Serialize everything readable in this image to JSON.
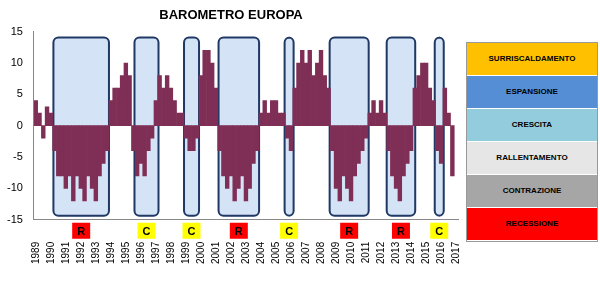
{
  "chart_data": {
    "type": "bar",
    "title": "BAROMETRO EUROPA",
    "categories": [
      "1989",
      null,
      null,
      null,
      "1990",
      null,
      null,
      null,
      "1991",
      null,
      null,
      null,
      "1992",
      null,
      null,
      null,
      "1993",
      null,
      null,
      null,
      "1994",
      null,
      null,
      null,
      "1995",
      null,
      null,
      null,
      "1996",
      null,
      null,
      null,
      "1997",
      null,
      null,
      null,
      "1998",
      null,
      null,
      null,
      "1999",
      null,
      null,
      null,
      "2000",
      null,
      null,
      null,
      "2001",
      null,
      null,
      null,
      "2002",
      null,
      null,
      null,
      "2003",
      null,
      null,
      null,
      "2004",
      null,
      null,
      null,
      "2005",
      null,
      null,
      null,
      "2006",
      null,
      null,
      null,
      "2007",
      null,
      null,
      null,
      "2008",
      null,
      null,
      null,
      "2009",
      null,
      null,
      null,
      "2010",
      null,
      null,
      null,
      "2011",
      null,
      null,
      null,
      "2012",
      null,
      null,
      null,
      "2013",
      null,
      null,
      null,
      "2014",
      null,
      null,
      null,
      "2015",
      null,
      null,
      null,
      "2016",
      null,
      null,
      null,
      "2017"
    ],
    "values": [
      4,
      2,
      -2,
      3,
      2,
      -4,
      -8,
      -8,
      -10,
      -8,
      -12,
      -8,
      -10,
      -12,
      -8,
      -10,
      -12,
      -8,
      -6,
      -4,
      4,
      6,
      6,
      8,
      10,
      8,
      -4,
      -8,
      -6,
      -8,
      -4,
      -2,
      4,
      8,
      6,
      8,
      6,
      4,
      2,
      2,
      -2,
      -4,
      -4,
      -2,
      8,
      12,
      12,
      10,
      6,
      -4,
      -8,
      -10,
      -8,
      -12,
      -10,
      -8,
      -12,
      -10,
      -6,
      -4,
      2,
      4,
      2,
      4,
      4,
      2,
      2,
      -2,
      -4,
      6,
      10,
      12,
      10,
      12,
      8,
      10,
      12,
      8,
      6,
      -4,
      -10,
      -12,
      -8,
      -10,
      -12,
      -8,
      -6,
      -4,
      -2,
      2,
      4,
      2,
      4,
      2,
      -4,
      -8,
      -10,
      -12,
      -8,
      -6,
      -4,
      6,
      8,
      10,
      10,
      6,
      4,
      -4,
      -6,
      6,
      2,
      -8,
      null
    ],
    "color": "#7f2f55",
    "ylim": [
      -15,
      15
    ],
    "yticks": [
      -15,
      -10,
      -5,
      0,
      5,
      10,
      15
    ],
    "grid": false,
    "periods": [
      {
        "label": "R",
        "color": "#ff0000",
        "start": 1990.3,
        "end": 1994.0
      },
      {
        "label": "C",
        "color": "#ffff00",
        "start": 1995.7,
        "end": 1997.3
      },
      {
        "label": "C",
        "color": "#ffff00",
        "start": 1999.0,
        "end": 2000.0
      },
      {
        "label": "R",
        "color": "#ff0000",
        "start": 2001.3,
        "end": 2004.0
      },
      {
        "label": "C",
        "color": "#ffff00",
        "start": 2005.7,
        "end": 2006.3
      },
      {
        "label": "R",
        "color": "#ff0000",
        "start": 2008.7,
        "end": 2011.3
      },
      {
        "label": "R",
        "color": "#ff0000",
        "start": 2012.5,
        "end": 2014.4
      },
      {
        "label": "C",
        "color": "#ffff00",
        "start": 2015.7,
        "end": 2016.3
      }
    ],
    "phases": [
      {
        "name": "SURRISCALDAMENTO",
        "color": "#ffc000"
      },
      {
        "name": "ESPANSIONE",
        "color": "#558ed5"
      },
      {
        "name": "CRESCITA",
        "color": "#93cddd"
      },
      {
        "name": "RALLENTAMENTO",
        "color": "#e6e6e6"
      },
      {
        "name": "CONTRAZIONE",
        "color": "#a6a6a6"
      },
      {
        "name": "RECESSIONE",
        "color": "#ff0000"
      }
    ]
  }
}
